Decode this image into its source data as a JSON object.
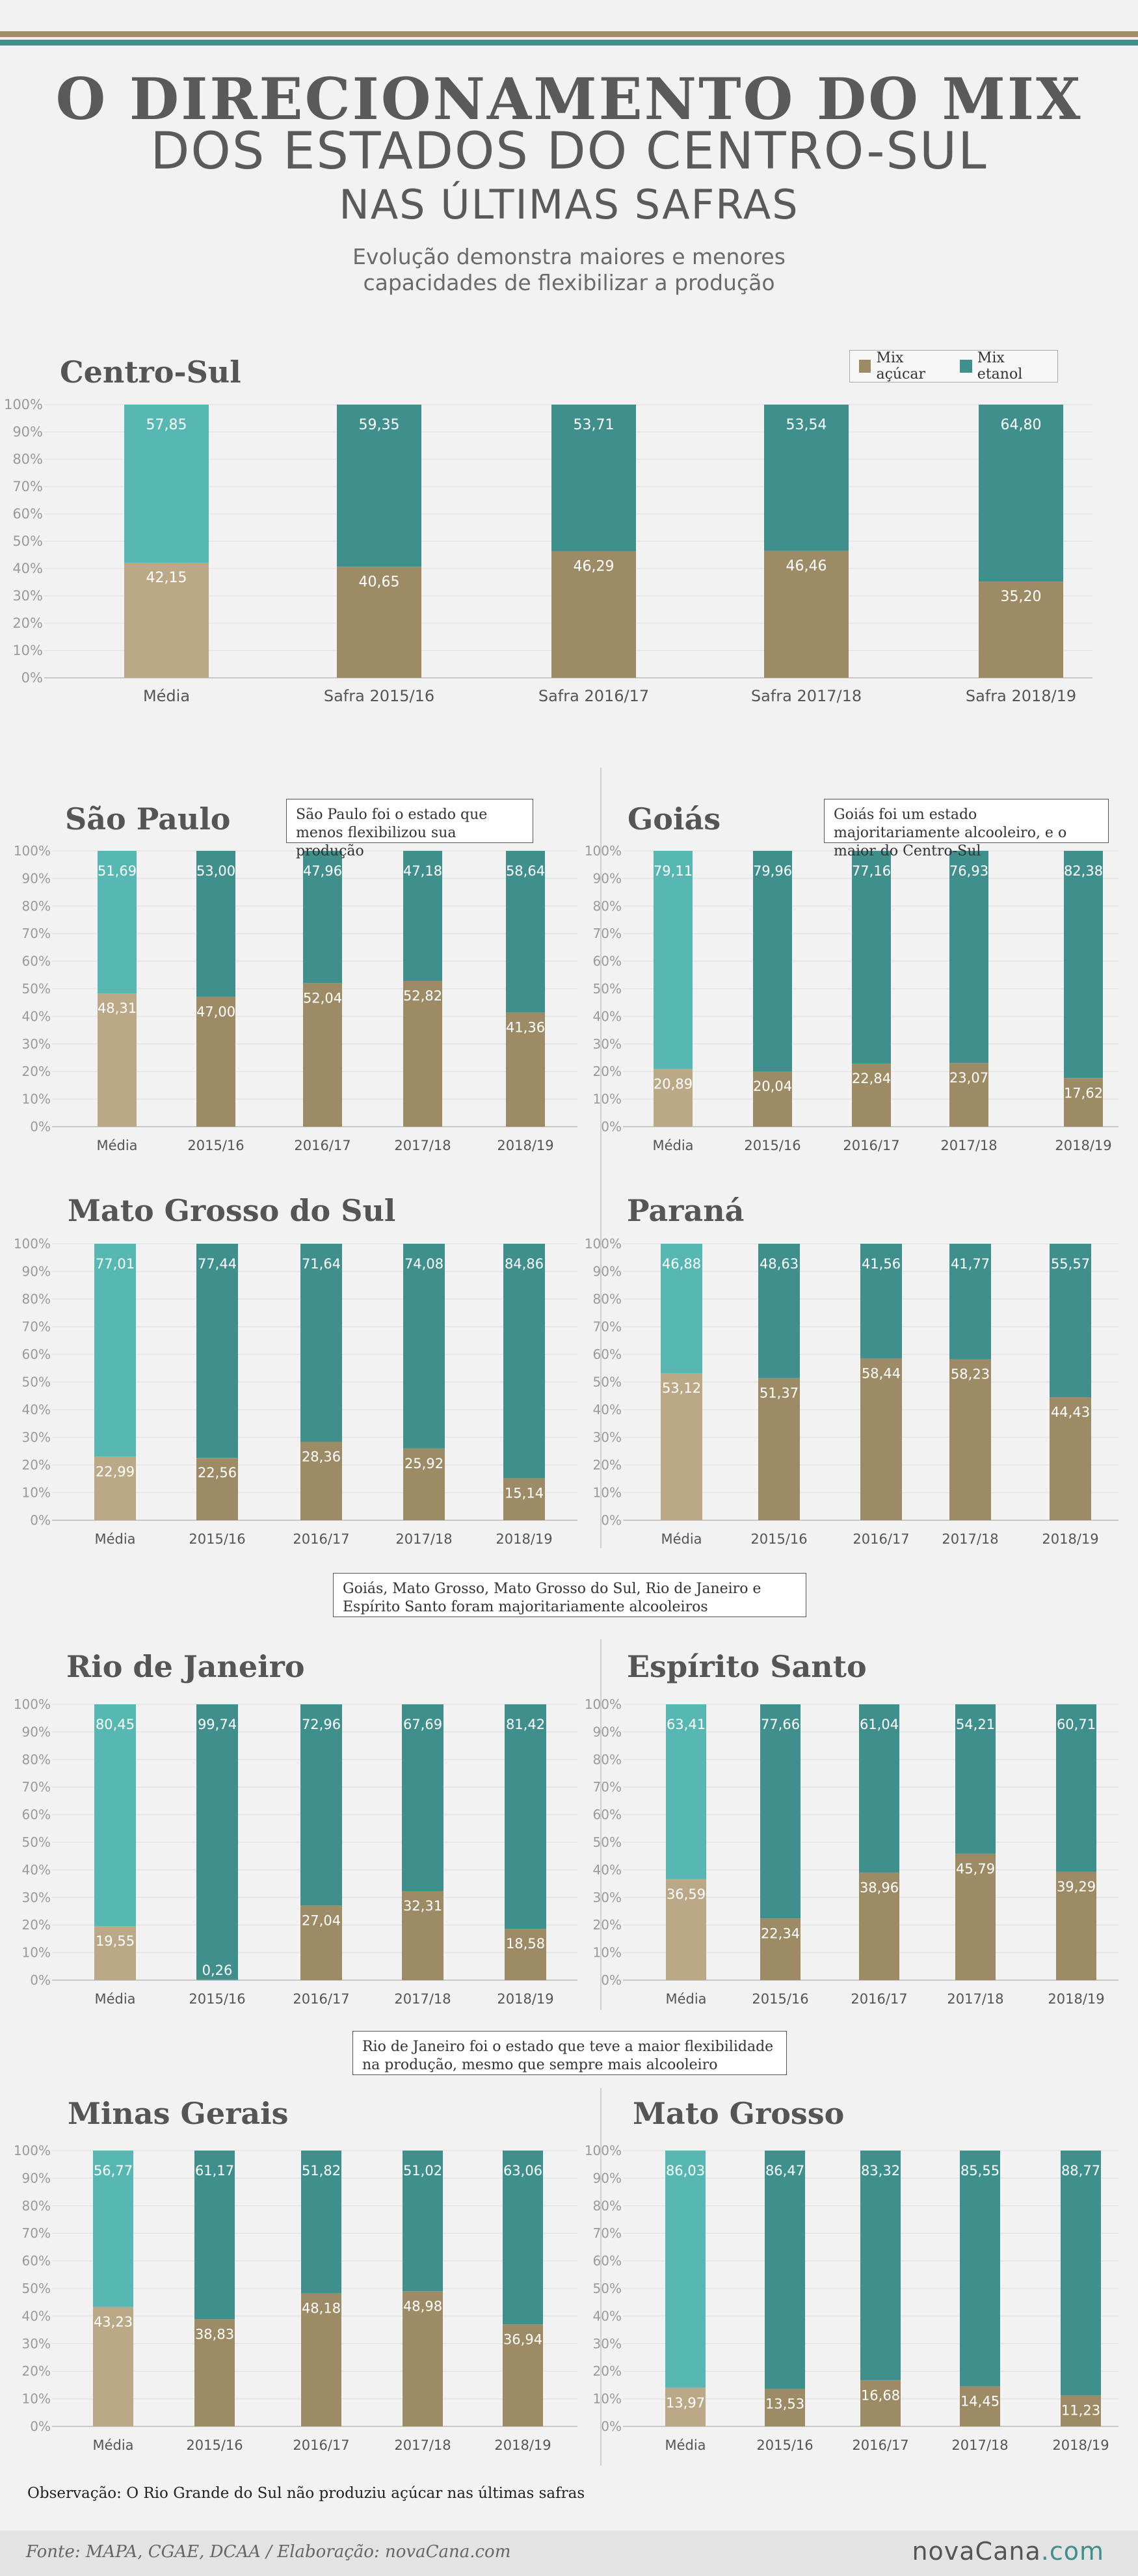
{
  "header": {
    "title_line1": "O DIRECIONAMENTO DO MIX",
    "title_line2": "DOS ESTADOS DO CENTRO-SUL",
    "title_line3": "NAS ÚLTIMAS SAFRAS",
    "subtitle_line1": "Evolução demonstra maiores e menores",
    "subtitle_line2": "capacidades de flexibilizar a produção"
  },
  "legend": {
    "acucar": "Mix açúcar",
    "etanol": "Mix etanol"
  },
  "colors": {
    "acucar_media": "#bba887",
    "acucar": "#9d8b66",
    "etanol_media": "#57b7b3",
    "etanol": "#3f8f8c",
    "topbar_brown": "#a08d6c",
    "topbar_teal": "#3f8f8c"
  },
  "callouts": {
    "sao_paulo": "São Paulo foi o estado que menos flexibilizou sua produção",
    "goias": "Goiás foi um estado majoritariamente alcooleiro, e o maior do Centro-Sul",
    "middle": "Goiás, Mato Grosso, Mato Grosso do Sul, Rio de Janeiro e Espírito Santo foram majoritariamente alcooleiros",
    "rio": "Rio de Janeiro foi o estado que teve a maior flexibilidade na produção, mesmo que sempre mais alcooleiro"
  },
  "note": "Observação: O Rio Grande do Sul não produziu açúcar nas últimas safras",
  "footer": {
    "source": "Fonte: MAPA, CGAE, DCAA / Elaboração: novaCana.com",
    "brand_main": "novaCana",
    "brand_dot": ".com"
  },
  "chart_data": [
    {
      "id": "centro_sul",
      "type": "bar",
      "stacked": true,
      "title": "Centro-Sul",
      "categories": [
        "Média",
        "Safra 2015/16",
        "Safra 2016/17",
        "Safra 2017/18",
        "Safra 2018/19"
      ],
      "series": [
        {
          "name": "Mix açúcar",
          "values": [
            42.15,
            40.65,
            46.29,
            46.46,
            35.2
          ],
          "labels": [
            "42,15",
            "40,65",
            "46,29",
            "46,46",
            "35,20"
          ]
        },
        {
          "name": "Mix etanol",
          "values": [
            57.85,
            59.35,
            53.71,
            53.54,
            64.8
          ],
          "labels": [
            "57,85",
            "59,35",
            "53,71",
            "53,54",
            "64,80"
          ]
        }
      ],
      "yticks": [
        "0%",
        "10%",
        "20%",
        "30%",
        "40%",
        "50%",
        "60%",
        "70%",
        "80%",
        "90%",
        "100%"
      ],
      "ylim": [
        0,
        100
      ],
      "legend": "top-right"
    },
    {
      "id": "sao_paulo",
      "type": "bar",
      "stacked": true,
      "title": "São Paulo",
      "categories": [
        "Média",
        "2015/16",
        "2016/17",
        "2017/18",
        "2018/19"
      ],
      "series": [
        {
          "name": "Mix açúcar",
          "values": [
            48.31,
            47.0,
            52.04,
            52.82,
            41.36
          ],
          "labels": [
            "48,31",
            "47,00",
            "52,04",
            "52,82",
            "41,36"
          ]
        },
        {
          "name": "Mix etanol",
          "values": [
            51.69,
            53.0,
            47.96,
            47.18,
            58.64
          ],
          "labels": [
            "51,69",
            "53,00",
            "47,96",
            "47,18",
            "58,64"
          ]
        }
      ],
      "yticks": [
        "0%",
        "10%",
        "20%",
        "30%",
        "40%",
        "50%",
        "60%",
        "70%",
        "80%",
        "90%",
        "100%"
      ],
      "ylim": [
        0,
        100
      ]
    },
    {
      "id": "goias",
      "type": "bar",
      "stacked": true,
      "title": "Goiás",
      "categories": [
        "Média",
        "2015/16",
        "2016/17",
        "2017/18",
        "2018/19"
      ],
      "series": [
        {
          "name": "Mix açúcar",
          "values": [
            20.89,
            20.04,
            22.84,
            23.07,
            17.62
          ],
          "labels": [
            "20,89",
            "20,04",
            "22,84",
            "23,07",
            "17,62"
          ]
        },
        {
          "name": "Mix etanol",
          "values": [
            79.11,
            79.96,
            77.16,
            76.93,
            82.38
          ],
          "labels": [
            "79,11",
            "79,96",
            "77,16",
            "76,93",
            "82,38"
          ]
        }
      ],
      "yticks": [
        "0%",
        "10%",
        "20%",
        "30%",
        "40%",
        "50%",
        "60%",
        "70%",
        "80%",
        "90%",
        "100%"
      ],
      "ylim": [
        0,
        100
      ]
    },
    {
      "id": "mato_grosso_do_sul",
      "type": "bar",
      "stacked": true,
      "title": "Mato Grosso do Sul",
      "categories": [
        "Média",
        "2015/16",
        "2016/17",
        "2017/18",
        "2018/19"
      ],
      "series": [
        {
          "name": "Mix açúcar",
          "values": [
            22.99,
            22.56,
            28.36,
            25.92,
            15.14
          ],
          "labels": [
            "22,99",
            "22,56",
            "28,36",
            "25,92",
            "15,14"
          ]
        },
        {
          "name": "Mix etanol",
          "values": [
            77.01,
            77.44,
            71.64,
            74.08,
            84.86
          ],
          "labels": [
            "77,01",
            "77,44",
            "71,64",
            "74,08",
            "84,86"
          ]
        }
      ],
      "yticks": [
        "0%",
        "10%",
        "20%",
        "30%",
        "40%",
        "50%",
        "60%",
        "70%",
        "80%",
        "90%",
        "100%"
      ],
      "ylim": [
        0,
        100
      ]
    },
    {
      "id": "parana",
      "type": "bar",
      "stacked": true,
      "title": "Paraná",
      "categories": [
        "Média",
        "2015/16",
        "2016/17",
        "2017/18",
        "2018/19"
      ],
      "series": [
        {
          "name": "Mix açúcar",
          "values": [
            53.12,
            51.37,
            58.44,
            58.23,
            44.43
          ],
          "labels": [
            "53,12",
            "51,37",
            "58,44",
            "58,23",
            "44,43"
          ]
        },
        {
          "name": "Mix etanol",
          "values": [
            46.88,
            48.63,
            41.56,
            41.77,
            55.57
          ],
          "labels": [
            "46,88",
            "48,63",
            "41,56",
            "41,77",
            "55,57"
          ]
        }
      ],
      "yticks": [
        "0%",
        "10%",
        "20%",
        "30%",
        "40%",
        "50%",
        "60%",
        "70%",
        "80%",
        "90%",
        "100%"
      ],
      "ylim": [
        0,
        100
      ]
    },
    {
      "id": "rio_de_janeiro",
      "type": "bar",
      "stacked": true,
      "title": "Rio de Janeiro",
      "categories": [
        "Média",
        "2015/16",
        "2016/17",
        "2017/18",
        "2018/19"
      ],
      "series": [
        {
          "name": "Mix açúcar",
          "values": [
            19.55,
            0.26,
            27.04,
            32.31,
            18.58
          ],
          "labels": [
            "19,55",
            "0,26",
            "27,04",
            "32,31",
            "18,58"
          ]
        },
        {
          "name": "Mix etanol",
          "values": [
            80.45,
            99.74,
            72.96,
            67.69,
            81.42
          ],
          "labels": [
            "80,45",
            "99,74",
            "72,96",
            "67,69",
            "81,42"
          ]
        }
      ],
      "yticks": [
        "0%",
        "10%",
        "20%",
        "30%",
        "40%",
        "50%",
        "60%",
        "70%",
        "80%",
        "90%",
        "100%"
      ],
      "ylim": [
        0,
        100
      ]
    },
    {
      "id": "espirito_santo",
      "type": "bar",
      "stacked": true,
      "title": "Espírito Santo",
      "categories": [
        "Média",
        "2015/16",
        "2016/17",
        "2017/18",
        "2018/19"
      ],
      "series": [
        {
          "name": "Mix açúcar",
          "values": [
            36.59,
            22.34,
            38.96,
            45.79,
            39.29
          ],
          "labels": [
            "36,59",
            "22,34",
            "38,96",
            "45,79",
            "39,29"
          ]
        },
        {
          "name": "Mix etanol",
          "values": [
            63.41,
            77.66,
            61.04,
            54.21,
            60.71
          ],
          "labels": [
            "63,41",
            "77,66",
            "61,04",
            "54,21",
            "60,71"
          ]
        }
      ],
      "yticks": [
        "0%",
        "10%",
        "20%",
        "30%",
        "40%",
        "50%",
        "60%",
        "70%",
        "80%",
        "90%",
        "100%"
      ],
      "ylim": [
        0,
        100
      ]
    },
    {
      "id": "minas_gerais",
      "type": "bar",
      "stacked": true,
      "title": "Minas Gerais",
      "categories": [
        "Média",
        "2015/16",
        "2016/17",
        "2017/18",
        "2018/19"
      ],
      "series": [
        {
          "name": "Mix açúcar",
          "values": [
            43.23,
            38.83,
            48.18,
            48.98,
            36.94
          ],
          "labels": [
            "43,23",
            "38,83",
            "48,18",
            "48,98",
            "36,94"
          ]
        },
        {
          "name": "Mix etanol",
          "values": [
            56.77,
            61.17,
            51.82,
            51.02,
            63.06
          ],
          "labels": [
            "56,77",
            "61,17",
            "51,82",
            "51,02",
            "63,06"
          ]
        }
      ],
      "yticks": [
        "0%",
        "10%",
        "20%",
        "30%",
        "40%",
        "50%",
        "60%",
        "70%",
        "80%",
        "90%",
        "100%"
      ],
      "ylim": [
        0,
        100
      ]
    },
    {
      "id": "mato_grosso",
      "type": "bar",
      "stacked": true,
      "title": "Mato Grosso",
      "categories": [
        "Média",
        "2015/16",
        "2016/17",
        "2017/18",
        "2018/19"
      ],
      "series": [
        {
          "name": "Mix açúcar",
          "values": [
            13.97,
            13.53,
            16.68,
            14.45,
            11.23
          ],
          "labels": [
            "13,97",
            "13,53",
            "16,68",
            "14,45",
            "11,23"
          ]
        },
        {
          "name": "Mix etanol",
          "values": [
            86.03,
            86.47,
            83.32,
            85.55,
            88.77
          ],
          "labels": [
            "86,03",
            "86,47",
            "83,32",
            "85,55",
            "88,77"
          ]
        }
      ],
      "yticks": [
        "0%",
        "10%",
        "20%",
        "30%",
        "40%",
        "50%",
        "60%",
        "70%",
        "80%",
        "90%",
        "100%"
      ],
      "ylim": [
        0,
        100
      ]
    }
  ]
}
